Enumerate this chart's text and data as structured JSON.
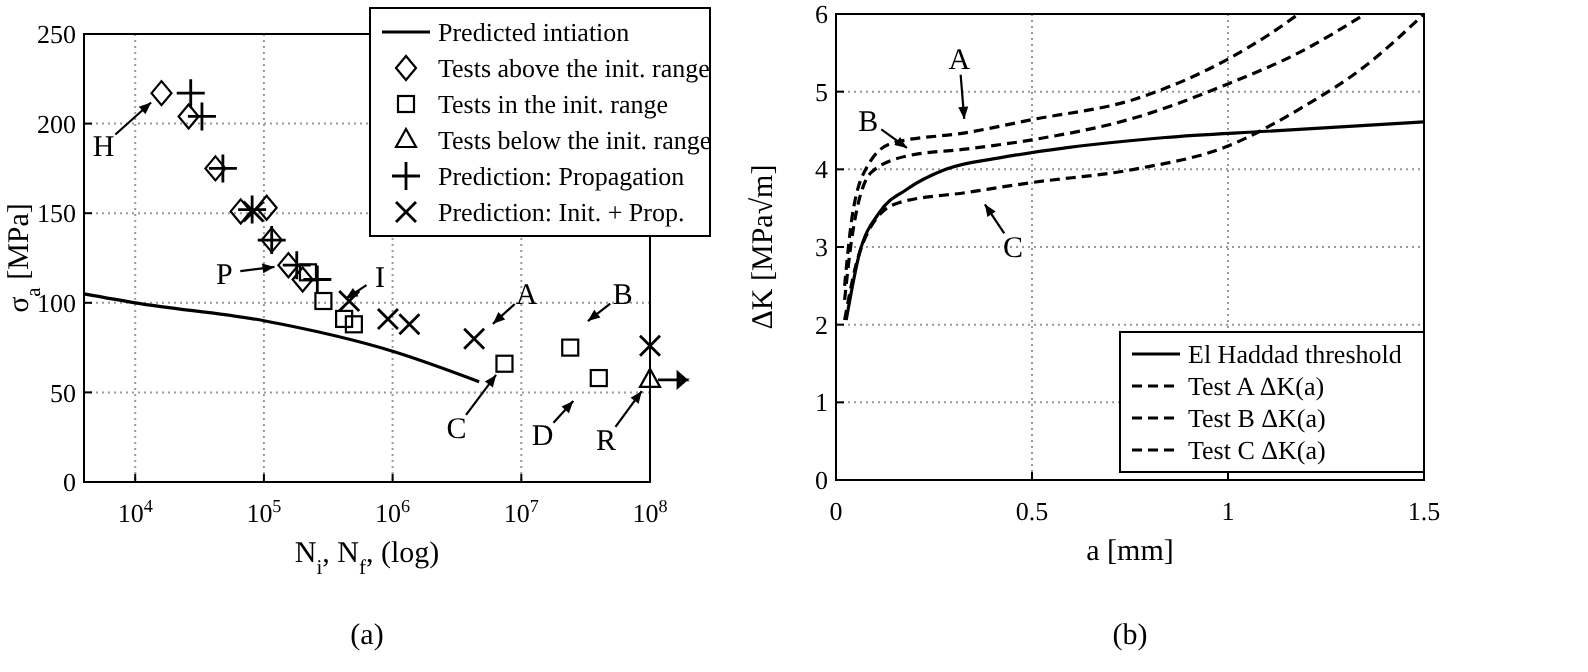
{
  "chart_data": [
    {
      "type": "scatter",
      "xlabel": "N$_{i}$, N$_{f}$, (log)",
      "ylabel": "σ$_{a}$ [MPa]",
      "log": "x",
      "xlim": [
        4000,
        100000000
      ],
      "ylim": [
        0,
        250
      ],
      "xticks": [
        {
          "value": 10000,
          "label": "10$^{4}$"
        },
        {
          "value": 100000,
          "label": "10$^{5}$"
        },
        {
          "value": 1000000,
          "label": "10$^{6}$"
        },
        {
          "value": 10000000,
          "label": "10$^{7}$"
        },
        {
          "value": 100000000,
          "label": "10$^{8}$"
        }
      ],
      "yticks": [
        0,
        50,
        100,
        150,
        200,
        250
      ],
      "grid": true,
      "legend": "top right",
      "series": [
        {
          "name": "Predicted intiation",
          "type": "line",
          "marker": "none",
          "line_style": "solid",
          "color": "#000000",
          "x": [
            4000,
            10000,
            100000,
            1000000,
            4700000
          ],
          "values": [
            105,
            100,
            90,
            73,
            56
          ]
        },
        {
          "name": "Tests above the init. range",
          "marker": "diamond",
          "color": "#000000",
          "x": [
            16000,
            26000,
            42000,
            66000,
            105000,
            115000,
            155000,
            200000
          ],
          "values": [
            217,
            204,
            175,
            151,
            153,
            135,
            121,
            113
          ]
        },
        {
          "name": "Tests in the init. range",
          "marker": "square",
          "color": "#000000",
          "x": [
            220000,
            290000,
            420000,
            500000,
            7400000,
            24000000,
            40000000
          ],
          "values": [
            117,
            101,
            91,
            88,
            66,
            75,
            58
          ]
        },
        {
          "name": "Tests below the init. range",
          "marker": "triangle",
          "color": "#000000",
          "x": [
            100000000
          ],
          "values": [
            57
          ]
        },
        {
          "name": "Prediction: Propagation",
          "marker": "plus",
          "color": "#000000",
          "x": [
            27000,
            33000,
            48000,
            81000,
            115000,
            180000,
            260000
          ],
          "values": [
            217,
            204,
            175,
            152,
            135,
            121,
            113
          ]
        },
        {
          "name": "Prediction: Init. + Prop.",
          "marker": "cross",
          "color": "#000000",
          "x": [
            83000,
            4300000,
            460000,
            920000,
            1350000,
            100000000
          ],
          "values": [
            151,
            80,
            101,
            91,
            88,
            76
          ]
        }
      ],
      "annotations": [
        {
          "text": "H",
          "x": 16000,
          "y": 217
        },
        {
          "text": "P",
          "x": 155000,
          "y": 121
        },
        {
          "text": "I",
          "x": 350000,
          "y": 98
        },
        {
          "text": "A",
          "x": 5000000,
          "y": 83
        },
        {
          "text": "B",
          "x": 27000000,
          "y": 85
        },
        {
          "text": "C",
          "x": 7400000,
          "y": 66
        },
        {
          "text": "D",
          "x": 30000000,
          "y": 51
        },
        {
          "text": "R",
          "x": 100000000,
          "y": 57
        },
        "(a)"
      ]
    },
    {
      "type": "line",
      "xlabel": "a [mm]",
      "ylabel": "ΔK [MPa√m]",
      "xlim": [
        0,
        1.5
      ],
      "ylim": [
        0,
        6
      ],
      "xticks": [
        0,
        0.5,
        1,
        1.5
      ],
      "yticks": [
        0,
        1,
        2,
        3,
        4,
        5,
        6
      ],
      "grid": true,
      "legend": "bottom right",
      "marker": "none",
      "series": [
        {
          "name": "El Haddad threshold",
          "line_style": "solid",
          "color": "#000000",
          "x": [
            0.026,
            0.06,
            0.11,
            0.18,
            0.28,
            0.42,
            0.59,
            0.84,
            1.1,
            1.5
          ],
          "values": [
            2.06,
            2.92,
            3.44,
            3.74,
            4.0,
            4.15,
            4.28,
            4.41,
            4.49,
            4.61
          ]
        },
        {
          "name": "Test A ΔK(a)",
          "line_style": "dashed",
          "color": "#000000",
          "x": [
            0.022,
            0.04,
            0.08,
            0.145,
            0.33,
            0.5,
            0.76,
            1.0,
            1.1,
            1.18
          ],
          "values": [
            2.5,
            3.35,
            4.04,
            4.34,
            4.47,
            4.64,
            4.9,
            5.42,
            5.72,
            6.0
          ]
        },
        {
          "name": "Test B ΔK(a)",
          "line_style": "dashed",
          "color": "#000000",
          "x": [
            0.022,
            0.04,
            0.09,
            0.18,
            0.33,
            0.5,
            0.76,
            1.0,
            1.18,
            1.35
          ],
          "values": [
            2.32,
            3.1,
            3.96,
            4.17,
            4.26,
            4.38,
            4.66,
            5.1,
            5.5,
            6.0
          ]
        },
        {
          "name": "Test C ΔK(a)",
          "line_style": "dashed",
          "color": "#000000",
          "x": [
            0.022,
            0.05,
            0.09,
            0.16,
            0.33,
            0.5,
            0.76,
            1.0,
            1.18,
            1.35,
            1.5
          ],
          "values": [
            2.06,
            2.75,
            3.27,
            3.57,
            3.7,
            3.83,
            4.0,
            4.3,
            4.77,
            5.33,
            6.0
          ]
        }
      ],
      "annotations": [
        {
          "text": "A",
          "x": 0.33,
          "y": 4.47
        },
        {
          "text": "B",
          "x": 0.21,
          "y": 4.17
        },
        {
          "text": "C",
          "x": 0.36,
          "y": 3.7
        },
        "(b)"
      ]
    }
  ]
}
